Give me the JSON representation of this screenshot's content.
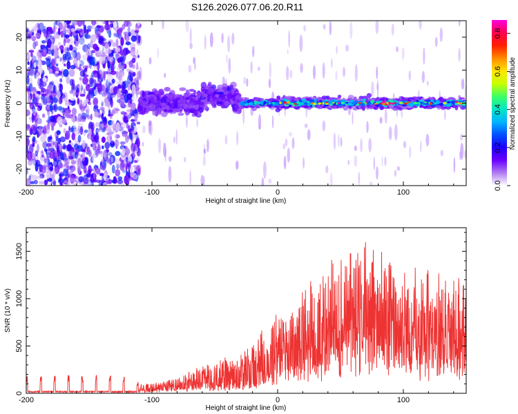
{
  "title": "S126.2026.077.06.20.R11",
  "chart_data": [
    {
      "type": "heatmap",
      "xlabel": "Height of straight line (km)",
      "ylabel": "Frequency (Hz)",
      "xlim": [
        -200,
        150
      ],
      "ylim": [
        -25,
        25
      ],
      "xticks": [
        -200,
        -100,
        0,
        100
      ],
      "yticks": [
        -20,
        -10,
        0,
        10,
        20
      ],
      "colorbar": {
        "label": "Normalized spectral amplitude",
        "range": [
          0,
          0.87
        ],
        "ticks": [
          "0.0",
          "0.2",
          "0.4",
          "0.6",
          "0.8"
        ],
        "colors": [
          "#ffffff",
          "#b07cf2",
          "#6a00ff",
          "#1e00ff",
          "#0050ff",
          "#00b4ff",
          "#00e6c8",
          "#3cff64",
          "#c8ff00",
          "#ffe600",
          "#ff8c00",
          "#ff1e00",
          "#ff0050",
          "#ff00dc"
        ]
      },
      "regions": [
        {
          "name": "scattered noise",
          "x_range": [
            -200,
            -110
          ],
          "freq_range": [
            -25,
            25
          ],
          "amplitude_range": [
            0.0,
            0.1
          ]
        },
        {
          "name": "broadened signal band",
          "x_range": [
            -110,
            -30
          ],
          "freq_range": [
            -5,
            5
          ],
          "amplitude_range": [
            0.1,
            0.35
          ]
        },
        {
          "name": "narrow signal line",
          "x_range": [
            -30,
            150
          ],
          "freq_range": [
            -2,
            2
          ],
          "amplitude_range": [
            0.15,
            0.87
          ]
        }
      ]
    },
    {
      "type": "line",
      "xlabel": "Height of straight line (km)",
      "ylabel": "SNR (10 * v/v)",
      "xlim": [
        -200,
        150
      ],
      "ylim": [
        0,
        1750
      ],
      "xticks": [
        -200,
        -100,
        0,
        100
      ],
      "yticks": [
        0,
        500,
        1000,
        1500
      ],
      "color": "#ee3333",
      "x": [
        -200,
        -180,
        -160,
        -140,
        -120,
        -110,
        -100,
        -90,
        -80,
        -70,
        -60,
        -50,
        -40,
        -30,
        -20,
        -10,
        0,
        10,
        20,
        30,
        40,
        50,
        60,
        70,
        80,
        90,
        100,
        110,
        120,
        130,
        140,
        150
      ],
      "envelope": [
        180,
        200,
        190,
        200,
        180,
        130,
        110,
        140,
        180,
        250,
        320,
        350,
        390,
        420,
        540,
        720,
        880,
        980,
        1150,
        1280,
        1450,
        1480,
        1650,
        1600,
        1500,
        1400,
        1350,
        1300,
        1450,
        1250,
        1300,
        1300
      ],
      "baseline": [
        20,
        20,
        20,
        20,
        20,
        20,
        25,
        30,
        40,
        50,
        60,
        70,
        80,
        90,
        100,
        150,
        200,
        250,
        300,
        350,
        400,
        450,
        500,
        500,
        450,
        450,
        400,
        400,
        380,
        380,
        380,
        380
      ]
    }
  ]
}
